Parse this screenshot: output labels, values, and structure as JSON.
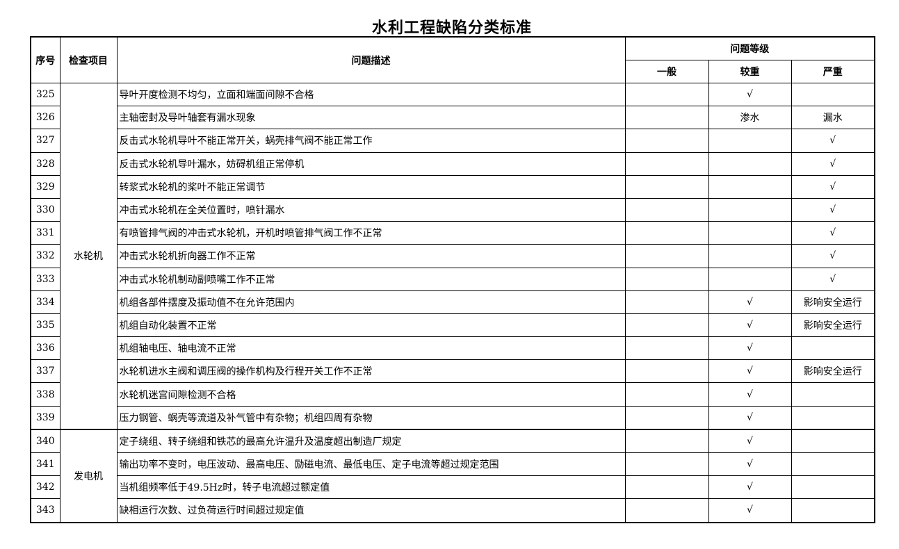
{
  "title": "水利工程缺陷分类标准",
  "headers": {
    "seq": "序号",
    "item": "检查项目",
    "desc": "问题描述",
    "level": "问题等级",
    "general": "一般",
    "major": "较重",
    "severe": "严重"
  },
  "groups": [
    {
      "name": "水轮机",
      "rows": [
        {
          "seq": "325",
          "desc": "导叶开度检测不均匀，立面和端面间隙不合格",
          "general": "",
          "major": "√",
          "severe": ""
        },
        {
          "seq": "326",
          "desc": "主轴密封及导叶轴套有漏水现象",
          "general": "",
          "major": "渗水",
          "severe": "漏水"
        },
        {
          "seq": "327",
          "desc": "反击式水轮机导叶不能正常开关，蜗壳排气阀不能正常工作",
          "general": "",
          "major": "",
          "severe": "√"
        },
        {
          "seq": "328",
          "desc": "反击式水轮机导叶漏水，妨碍机组正常停机",
          "general": "",
          "major": "",
          "severe": "√"
        },
        {
          "seq": "329",
          "desc": "转浆式水轮机的桨叶不能正常调节",
          "general": "",
          "major": "",
          "severe": "√"
        },
        {
          "seq": "330",
          "desc": "冲击式水轮机在全关位置时，喷针漏水",
          "general": "",
          "major": "",
          "severe": "√"
        },
        {
          "seq": "331",
          "desc": "有喷管排气阀的冲击式水轮机，开机时喷管排气阀工作不正常",
          "general": "",
          "major": "",
          "severe": "√"
        },
        {
          "seq": "332",
          "desc": "冲击式水轮机折向器工作不正常",
          "general": "",
          "major": "",
          "severe": "√"
        },
        {
          "seq": "333",
          "desc": "冲击式水轮机制动副喷嘴工作不正常",
          "general": "",
          "major": "",
          "severe": "√"
        },
        {
          "seq": "334",
          "desc": "机组各部件摆度及振动值不在允许范围内",
          "general": "",
          "major": "√",
          "severe": "影响安全运行"
        },
        {
          "seq": "335",
          "desc": "机组自动化装置不正常",
          "general": "",
          "major": "√",
          "severe": "影响安全运行"
        },
        {
          "seq": "336",
          "desc": "机组轴电压、轴电流不正常",
          "general": "",
          "major": "√",
          "severe": ""
        },
        {
          "seq": "337",
          "desc": "水轮机进水主阀和调压阀的操作机构及行程开关工作不正常",
          "general": "",
          "major": "√",
          "severe": "影响安全运行"
        },
        {
          "seq": "338",
          "desc": "水轮机迷宫间隙检测不合格",
          "general": "",
          "major": "√",
          "severe": ""
        },
        {
          "seq": "339",
          "desc": "压力钢管、蜗壳等流道及补气管中有杂物；机组四周有杂物",
          "general": "",
          "major": "√",
          "severe": ""
        }
      ]
    },
    {
      "name": "发电机",
      "rows": [
        {
          "seq": "340",
          "desc": "定子绕组、转子绕组和铁芯的最高允许温升及温度超出制造厂规定",
          "general": "",
          "major": "√",
          "severe": ""
        },
        {
          "seq": "341",
          "desc": "输出功率不变时，电压波动、最高电压、励磁电流、最低电压、定子电流等超过规定范围",
          "general": "",
          "major": "√",
          "severe": ""
        },
        {
          "seq": "342",
          "desc": "当机组频率低于49.5Hz时，转子电流超过额定值",
          "general": "",
          "major": "√",
          "severe": ""
        },
        {
          "seq": "343",
          "desc": "缺相运行次数、过负荷运行时间超过规定值",
          "general": "",
          "major": "√",
          "severe": ""
        }
      ]
    }
  ]
}
